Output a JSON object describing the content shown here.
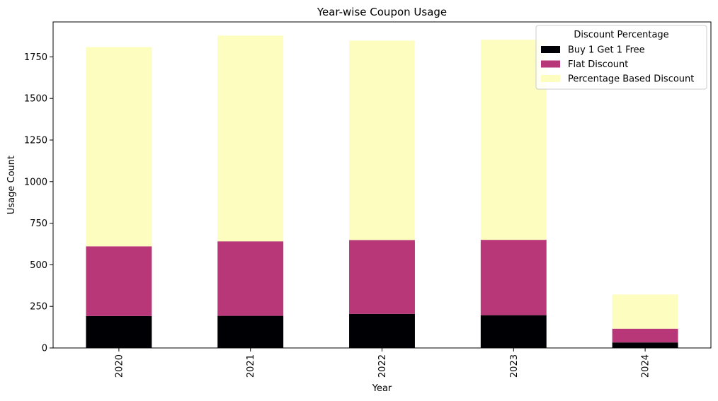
{
  "chart_data": {
    "type": "bar",
    "stacked": true,
    "title": "Year-wise Coupon Usage",
    "xlabel": "Year",
    "ylabel": "Usage Count",
    "categories": [
      "2020",
      "2021",
      "2022",
      "2023",
      "2024"
    ],
    "ylim": [
      0,
      1960
    ],
    "yticks": [
      0,
      250,
      500,
      750,
      1000,
      1250,
      1500,
      1750
    ],
    "grid": false,
    "legend": {
      "title": "Discount Percentage",
      "placement": "top-right"
    },
    "series": [
      {
        "name": "Buy 1 Get 1 Free",
        "color": "#000004",
        "values": [
          192,
          193,
          205,
          197,
          33
        ]
      },
      {
        "name": "Flat Discount",
        "color": "#b73779",
        "values": [
          419,
          448,
          444,
          453,
          83
        ]
      },
      {
        "name": "Percentage Based Discount",
        "color": "#fcfdbf",
        "values": [
          1198,
          1237,
          1199,
          1203,
          205
        ]
      }
    ]
  }
}
